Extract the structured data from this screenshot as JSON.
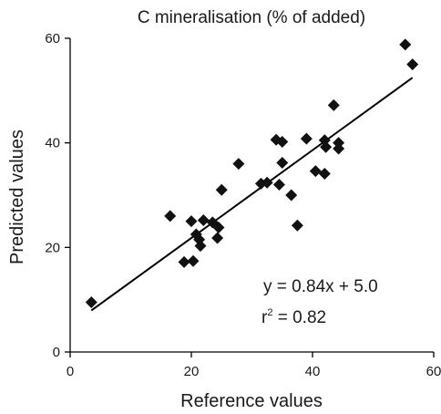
{
  "chart_data": {
    "type": "scatter",
    "title": "C mineralisation (% of added)",
    "xlabel": "Reference values",
    "ylabel": "Predicted values",
    "xlim": [
      0,
      60
    ],
    "ylim": [
      0,
      60
    ],
    "xticks": [
      "0",
      "20",
      "40",
      "60"
    ],
    "yticks": [
      "0",
      "20",
      "40",
      "60"
    ],
    "marker": "diamond",
    "grid": false,
    "legend": "none",
    "points": [
      [
        3.5,
        9.5
      ],
      [
        16.5,
        26.0
      ],
      [
        18.8,
        17.2
      ],
      [
        20.0,
        25.0
      ],
      [
        20.3,
        17.4
      ],
      [
        20.8,
        22.5
      ],
      [
        21.3,
        21.5
      ],
      [
        21.5,
        20.3
      ],
      [
        22.0,
        25.2
      ],
      [
        23.5,
        24.8
      ],
      [
        24.3,
        21.8
      ],
      [
        24.5,
        23.8
      ],
      [
        25.0,
        31.0
      ],
      [
        27.8,
        36.0
      ],
      [
        31.5,
        32.2
      ],
      [
        32.5,
        32.4
      ],
      [
        34.0,
        40.6
      ],
      [
        34.5,
        32.0
      ],
      [
        35.0,
        40.2
      ],
      [
        35.0,
        36.2
      ],
      [
        36.5,
        30.0
      ],
      [
        37.5,
        24.2
      ],
      [
        39.0,
        40.8
      ],
      [
        40.5,
        34.6
      ],
      [
        42.0,
        34.1
      ],
      [
        42.0,
        40.5
      ],
      [
        42.2,
        39.2
      ],
      [
        43.5,
        47.2
      ],
      [
        44.3,
        40.0
      ],
      [
        44.3,
        38.9
      ],
      [
        55.3,
        58.8
      ],
      [
        56.5,
        55.0
      ]
    ],
    "fit": {
      "slope": 0.84,
      "intercept": 5.0,
      "x_range": [
        3.5,
        56.5
      ],
      "equation": "y = 0.84x + 5.0",
      "r2_label": "r",
      "r2_sup": "2",
      "r2_value": " = 0.82"
    }
  }
}
